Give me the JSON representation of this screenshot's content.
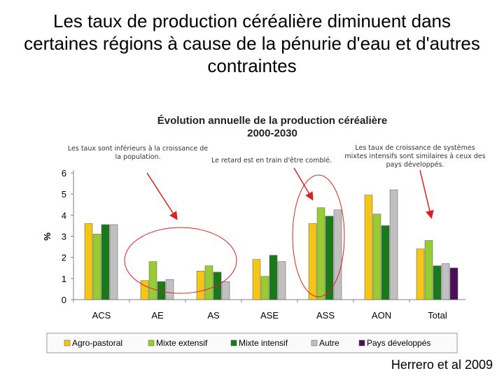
{
  "slide": {
    "title": "Les taux de production céréalière diminuent dans certaines régions à cause de la pénurie d'eau et d'autres contraintes",
    "credit": "Herrero et al 2009"
  },
  "chart_data": {
    "type": "bar",
    "title": "Évolution annuelle de la production céréalière",
    "subtitle": "2000-2030",
    "xlabel": "",
    "ylabel": "%",
    "ylim": [
      0,
      6
    ],
    "yticks": [
      0,
      1,
      2,
      3,
      4,
      5,
      6
    ],
    "grid": false,
    "legend_position": "bottom",
    "categories": [
      "ACS",
      "AE",
      "AS",
      "ASE",
      "ASS",
      "AON",
      "Total"
    ],
    "series": [
      {
        "name": "Agro-pastoral",
        "color": "#f5c518",
        "values": [
          3.6,
          0.9,
          1.35,
          1.9,
          3.6,
          4.95,
          2.4
        ]
      },
      {
        "name": "Mixte extensif",
        "color": "#99cc33",
        "values": [
          3.1,
          1.8,
          1.6,
          1.1,
          4.35,
          4.05,
          2.8
        ]
      },
      {
        "name": "Mixte intensif",
        "color": "#1a7a1a",
        "values": [
          3.55,
          0.85,
          1.3,
          2.1,
          3.95,
          3.5,
          1.6
        ]
      },
      {
        "name": "Autre",
        "color": "#c0c0c0",
        "values": [
          3.55,
          0.95,
          0.85,
          1.8,
          4.25,
          5.2,
          1.7
        ]
      },
      {
        "name": "Pays développés",
        "color": "#4b0f5a",
        "values": [
          null,
          null,
          null,
          null,
          null,
          null,
          1.5
        ]
      }
    ],
    "annotations": [
      {
        "text_lines": [
          "Les taux sont inférieurs à la croissance de",
          "la population."
        ]
      },
      {
        "text_lines": [
          "Le retard est en train d'être comblé."
        ]
      },
      {
        "text_lines": [
          "Les taux de croissance de systèmes",
          "mixtes intensifs sont similaires à ceux des",
          "pays développés."
        ]
      }
    ],
    "colors": {
      "annotation_arrow": "#e02020",
      "highlight_circle": "#e02020",
      "axis": "#808080"
    }
  }
}
